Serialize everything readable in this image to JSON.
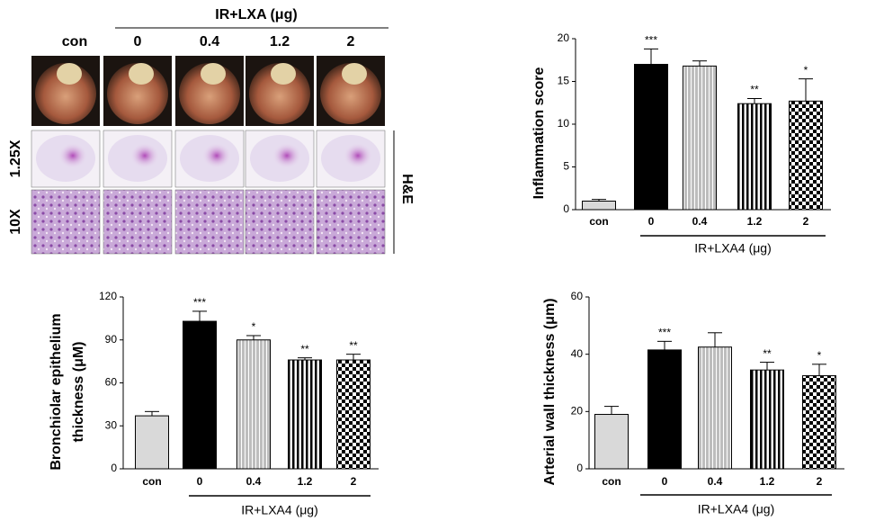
{
  "image_panel": {
    "header": "IR+LXA (μg)",
    "columns": [
      "con",
      "0",
      "0.4",
      "1.2",
      "2"
    ],
    "rows": [
      "1.25X",
      "10X"
    ],
    "stain": "H&E"
  },
  "chart_data": [
    {
      "type": "bar",
      "ylabel": [
        "Inflammation score"
      ],
      "categories": [
        "con",
        "0",
        "0.4",
        "1.2",
        "2"
      ],
      "group_label": "IR+LXA4 (μg)",
      "values": [
        1,
        17,
        16.8,
        12.4,
        12.7
      ],
      "errors": [
        0.2,
        1.8,
        0.6,
        0.6,
        2.6
      ],
      "annotations": [
        null,
        "***",
        null,
        "**",
        "*"
      ],
      "fills": [
        "#d9d9d9",
        "#000000",
        "fine-stripes",
        "stripes",
        "checker"
      ],
      "ylim": [
        0,
        20
      ],
      "yticks": [
        0,
        5,
        10,
        15,
        20
      ]
    },
    {
      "type": "bar",
      "ylabel": [
        "Bronchiolar epithelium",
        "thickness (μM)"
      ],
      "categories": [
        "con",
        "0",
        "0.4",
        "1.2",
        "2"
      ],
      "group_label": "IR+LXA4 (μg)",
      "values": [
        37,
        103,
        90,
        76,
        76
      ],
      "errors": [
        3,
        7,
        3,
        1.5,
        4
      ],
      "annotations": [
        null,
        "***",
        "*",
        "**",
        "**"
      ],
      "fills": [
        "#d9d9d9",
        "#000000",
        "fine-stripes",
        "stripes",
        "checker"
      ],
      "ylim": [
        0,
        120
      ],
      "yticks": [
        0,
        30,
        60,
        90,
        120
      ]
    },
    {
      "type": "bar",
      "ylabel": [
        "Arterial wall thickness (μm)"
      ],
      "categories": [
        "con",
        "0",
        "0.4",
        "1.2",
        "2"
      ],
      "group_label": "IR+LXA4 (μg)",
      "values": [
        19,
        41.5,
        42.5,
        34.5,
        32.5
      ],
      "errors": [
        2.8,
        3,
        5,
        2.7,
        4
      ],
      "annotations": [
        null,
        "***",
        null,
        "**",
        "*"
      ],
      "fills": [
        "#d9d9d9",
        "#000000",
        "fine-stripes",
        "stripes",
        "checker"
      ],
      "ylim": [
        0,
        60
      ],
      "yticks": [
        0,
        20,
        40,
        60
      ]
    }
  ]
}
